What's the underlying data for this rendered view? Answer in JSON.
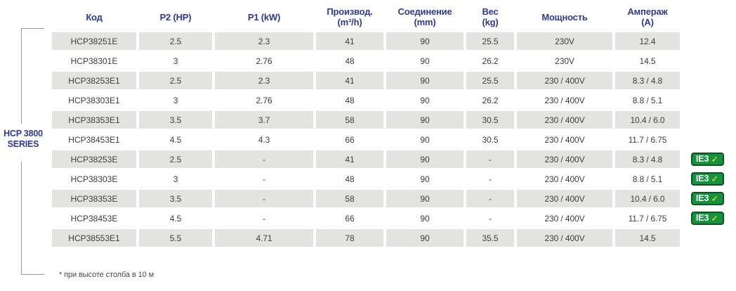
{
  "series_label": {
    "line1": "HCP 3800",
    "line2": "SERIES"
  },
  "footnote": "* при высоте столба в 10 м",
  "colors": {
    "header_text": "#2f3a8f",
    "row_stripe": "#e3e3e2",
    "cell_text": "#3d3d3d",
    "badge_green": "#16923f",
    "badge_border": "#0c5424",
    "badge_check_yellow": "#f7e714",
    "bracket_line": "#9a9a9a"
  },
  "badge": {
    "label": "IE3",
    "check": "✓"
  },
  "table": {
    "columns": [
      {
        "label": "Код",
        "sub": ""
      },
      {
        "label": "P2 (HP)",
        "sub": ""
      },
      {
        "label": "P1 (kW)",
        "sub": ""
      },
      {
        "label": "Производ.",
        "sub": "(m³/h)"
      },
      {
        "label": "Соединение",
        "sub": "(mm)"
      },
      {
        "label": "Вес",
        "sub": "(kg)"
      },
      {
        "label": "Мощность",
        "sub": ""
      },
      {
        "label": "Ампераж",
        "sub": "(A)"
      }
    ],
    "rows": [
      {
        "code": "HCP38251E",
        "p2": "2.5",
        "p1": "2.3",
        "flow": "41",
        "conn": "90",
        "weight": "25.5",
        "power": "230V",
        "amp": "12.4",
        "ie3": false
      },
      {
        "code": "HCP38301E",
        "p2": "3",
        "p1": "2.76",
        "flow": "48",
        "conn": "90",
        "weight": "26.2",
        "power": "230V",
        "amp": "14.5",
        "ie3": false
      },
      {
        "code": "HCP38253E1",
        "p2": "2.5",
        "p1": "2.3",
        "flow": "41",
        "conn": "90",
        "weight": "25.5",
        "power": "230 / 400V",
        "amp": "8.3 / 4.8",
        "ie3": false
      },
      {
        "code": "HCP38303E1",
        "p2": "3",
        "p1": "2.76",
        "flow": "48",
        "conn": "90",
        "weight": "26.2",
        "power": "230 / 400V",
        "amp": "8.8 / 5.1",
        "ie3": false
      },
      {
        "code": "HCP38353E1",
        "p2": "3.5",
        "p1": "3.7",
        "flow": "58",
        "conn": "90",
        "weight": "30.5",
        "power": "230 / 400V",
        "amp": "10.4 / 6.0",
        "ie3": false
      },
      {
        "code": "HCP38453E1",
        "p2": "4.5",
        "p1": "4.3",
        "flow": "66",
        "conn": "90",
        "weight": "30.5",
        "power": "230 / 400V",
        "amp": "11.7 / 6.75",
        "ie3": false
      },
      {
        "code": "HCP38253E",
        "p2": "2.5",
        "p1": "-",
        "flow": "41",
        "conn": "90",
        "weight": "-",
        "power": "230 / 400V",
        "amp": "8.3 / 4.8",
        "ie3": true
      },
      {
        "code": "HCP38303E",
        "p2": "3",
        "p1": "-",
        "flow": "48",
        "conn": "90",
        "weight": "-",
        "power": "230 / 400V",
        "amp": "8.8 / 5.1",
        "ie3": true
      },
      {
        "code": "HCP38353E",
        "p2": "3.5",
        "p1": "-",
        "flow": "58",
        "conn": "90",
        "weight": "-",
        "power": "230 / 400V",
        "amp": "10.4 / 6.0",
        "ie3": true
      },
      {
        "code": "HCP38453E",
        "p2": "4.5",
        "p1": "-",
        "flow": "66",
        "conn": "90",
        "weight": "-",
        "power": "230 / 400V",
        "amp": "11.7 / 6.75",
        "ie3": true
      },
      {
        "code": "HCP38553E1",
        "p2": "5.5",
        "p1": "4.71",
        "flow": "78",
        "conn": "90",
        "weight": "35.5",
        "power": "230 / 400V",
        "amp": "14.5",
        "ie3": false
      }
    ]
  }
}
